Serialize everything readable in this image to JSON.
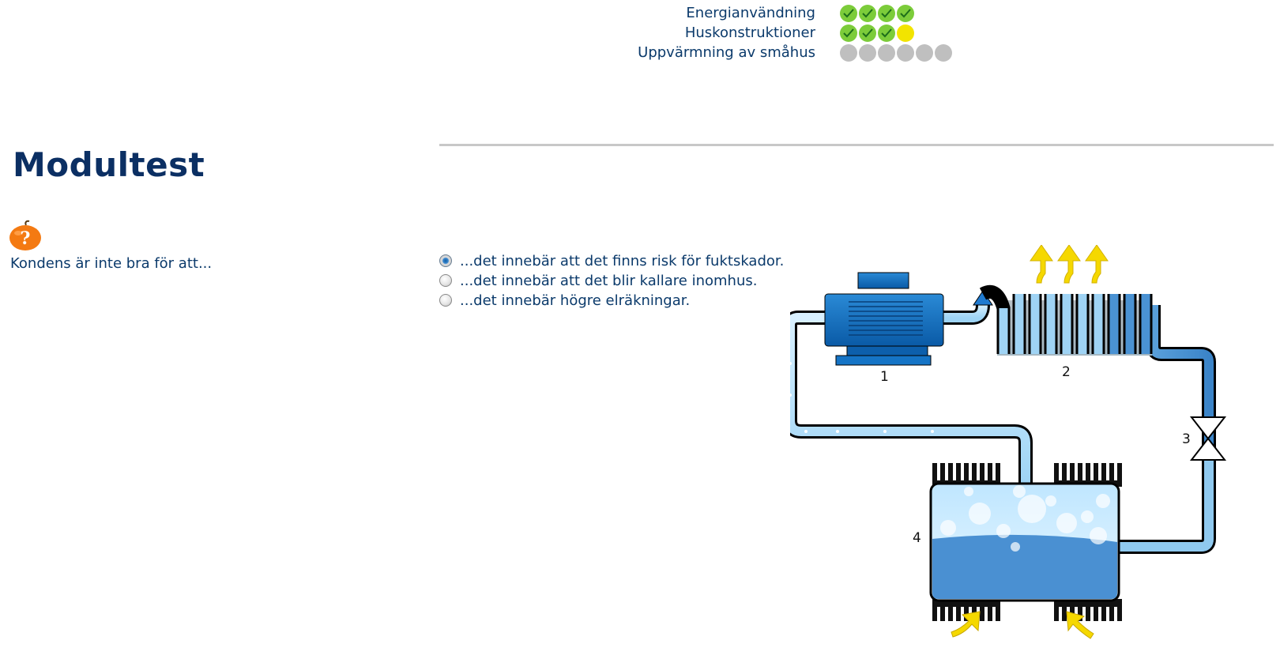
{
  "progress": {
    "rows": [
      {
        "label": "Energianvändning",
        "dots": [
          "done",
          "done",
          "done",
          "done"
        ]
      },
      {
        "label": "Huskonstruktioner",
        "dots": [
          "done",
          "done",
          "done",
          "current"
        ]
      },
      {
        "label": "Uppvärmning av småhus",
        "dots": [
          "pending",
          "pending",
          "pending",
          "pending",
          "pending",
          "pending"
        ]
      }
    ],
    "colors": {
      "done": "#7ccc3a",
      "current": "#f2e400",
      "pending": "#bfbfbf",
      "check": "#1d6e1a"
    }
  },
  "page": {
    "title": "Modultest"
  },
  "question": {
    "icon": "question-apple-icon",
    "text": "Kondens är inte bra för att..."
  },
  "answers": {
    "options": [
      {
        "label": "...det innebär att det finns risk för fuktskador.",
        "selected": true
      },
      {
        "label": "...det innebär att det blir kallare inomhus.",
        "selected": false
      },
      {
        "label": "...det innebär högre elräkningar.",
        "selected": false
      }
    ]
  },
  "diagram": {
    "labels": {
      "compressor": "1",
      "condenser": "2",
      "valve": "3",
      "evaporator": "4"
    }
  }
}
